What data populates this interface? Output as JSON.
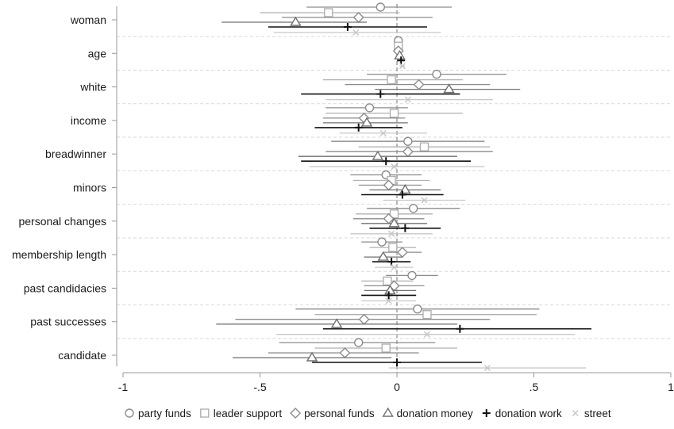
{
  "chart_data": {
    "type": "scatter",
    "subtype": "coefficient-plot",
    "title": "",
    "xlabel": "",
    "ylabel": "",
    "xlim": [
      -1,
      1
    ],
    "x_ticks": [
      -1,
      -0.5,
      0,
      0.5,
      1
    ],
    "x_tick_labels": [
      "-1",
      "-.5",
      "0",
      ".5",
      "1"
    ],
    "reference_line": 0,
    "grid": "horizontal dashed",
    "legend_position": "bottom",
    "categories": [
      "woman",
      "age",
      "white",
      "income",
      "breadwinner",
      "minors",
      "personal changes",
      "membership length",
      "past candidacies",
      "past successes",
      "candidate"
    ],
    "series": [
      {
        "name": "party funds",
        "marker": "circle",
        "color": "#8c8c8c",
        "values": [
          -0.06,
          0.005,
          0.145,
          -0.1,
          0.04,
          -0.04,
          0.06,
          -0.055,
          0.055,
          0.075,
          -0.14
        ],
        "ci_low": [
          -0.33,
          -0.005,
          -0.11,
          -0.26,
          -0.24,
          -0.17,
          -0.11,
          -0.13,
          -0.04,
          -0.37,
          -0.43
        ],
        "ci_high": [
          0.2,
          0.015,
          0.4,
          0.04,
          0.32,
          0.09,
          0.23,
          0.02,
          0.15,
          0.52,
          0.14
        ]
      },
      {
        "name": "leader support",
        "marker": "square",
        "color": "#b0b0b0",
        "values": [
          -0.25,
          0.005,
          -0.02,
          -0.01,
          0.1,
          -0.02,
          -0.01,
          -0.015,
          -0.035,
          0.11,
          -0.04
        ],
        "ci_low": [
          -0.5,
          -0.005,
          -0.27,
          -0.26,
          -0.14,
          -0.16,
          -0.15,
          -0.1,
          -0.13,
          -0.3,
          -0.3
        ],
        "ci_high": [
          0.01,
          0.015,
          0.24,
          0.24,
          0.34,
          0.12,
          0.13,
          0.07,
          0.06,
          0.51,
          0.22
        ]
      },
      {
        "name": "personal funds",
        "marker": "diamond",
        "color": "#8c8c8c",
        "values": [
          -0.14,
          0.005,
          0.08,
          -0.12,
          0.04,
          -0.03,
          -0.03,
          0.02,
          -0.01,
          -0.12,
          -0.19
        ],
        "ci_low": [
          -0.42,
          -0.005,
          -0.19,
          -0.27,
          -0.26,
          -0.14,
          -0.16,
          -0.05,
          -0.12,
          -0.59,
          -0.47
        ],
        "ci_high": [
          0.13,
          0.015,
          0.34,
          0.03,
          0.35,
          0.09,
          0.1,
          0.09,
          0.1,
          0.34,
          0.08
        ]
      },
      {
        "name": "donation money",
        "marker": "triangle",
        "color": "#707070",
        "values": [
          -0.37,
          0.01,
          0.19,
          -0.11,
          -0.07,
          0.03,
          -0.01,
          -0.05,
          -0.025,
          -0.22,
          -0.31
        ],
        "ci_low": [
          -0.64,
          0.0,
          -0.08,
          -0.27,
          -0.36,
          -0.1,
          -0.13,
          -0.12,
          -0.12,
          -0.66,
          -0.6
        ],
        "ci_high": [
          -0.11,
          0.02,
          0.45,
          0.04,
          0.22,
          0.16,
          0.11,
          0.02,
          0.07,
          0.22,
          -0.02
        ]
      },
      {
        "name": "donation work",
        "marker": "plus",
        "color": "#111111",
        "values": [
          -0.18,
          0.015,
          -0.06,
          -0.14,
          -0.04,
          0.02,
          0.03,
          -0.02,
          -0.03,
          0.23,
          0.0
        ],
        "ci_low": [
          -0.47,
          0.005,
          -0.35,
          -0.3,
          -0.35,
          -0.13,
          -0.1,
          -0.09,
          -0.13,
          -0.27,
          -0.31
        ],
        "ci_high": [
          0.11,
          0.025,
          0.23,
          0.02,
          0.27,
          0.17,
          0.16,
          0.05,
          0.07,
          0.71,
          0.31
        ]
      },
      {
        "name": "street",
        "marker": "x",
        "color": "#c8c8c8",
        "values": [
          -0.15,
          0.02,
          0.04,
          -0.05,
          -0.01,
          0.1,
          -0.02,
          -0.01,
          -0.03,
          0.11,
          0.33
        ],
        "ci_low": [
          -0.45,
          0.01,
          -0.26,
          -0.21,
          -0.32,
          -0.05,
          -0.17,
          -0.08,
          -0.13,
          -0.44,
          -0.03
        ],
        "ci_high": [
          0.16,
          0.03,
          0.35,
          0.11,
          0.32,
          0.25,
          0.13,
          0.06,
          0.07,
          0.65,
          0.69
        ]
      }
    ]
  }
}
